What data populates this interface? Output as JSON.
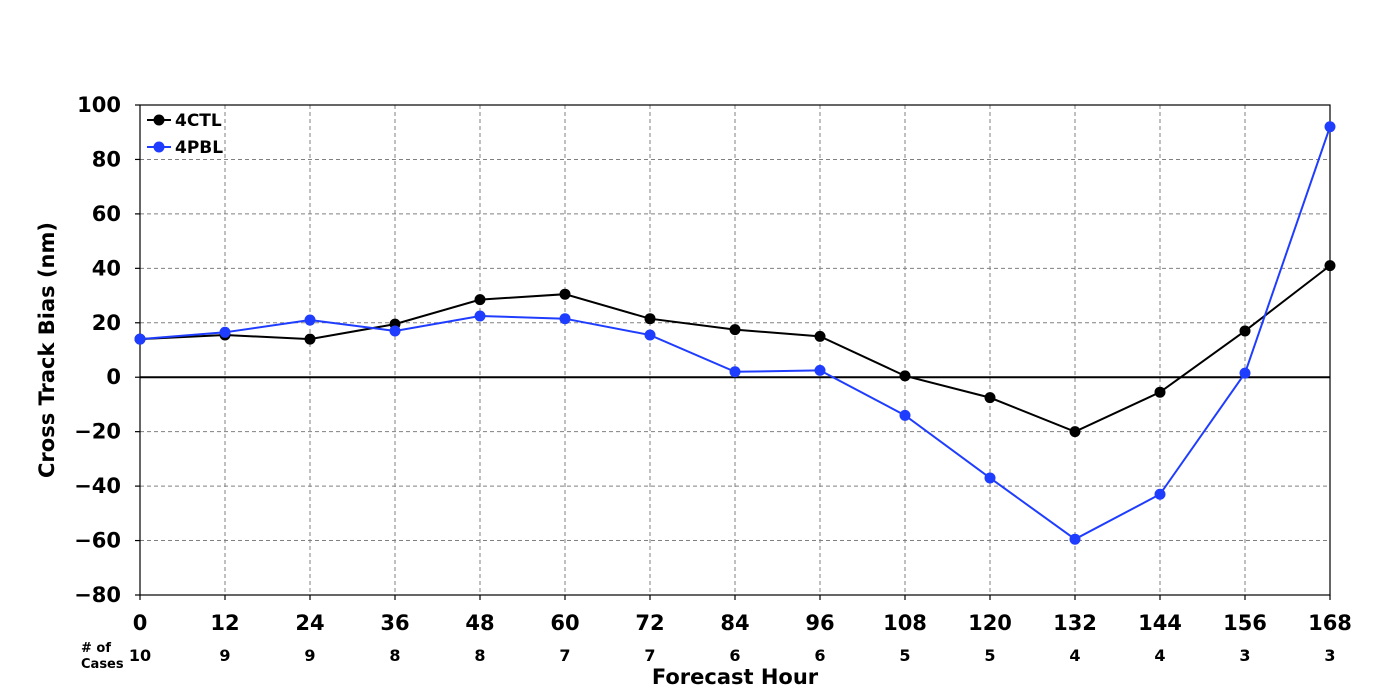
{
  "chart_data": {
    "type": "line",
    "xlabel": "Forecast Hour",
    "ylabel": "Cross Track Bias (nm)",
    "x": [
      0,
      12,
      24,
      36,
      48,
      60,
      72,
      84,
      96,
      108,
      120,
      132,
      144,
      156,
      168
    ],
    "xlim": [
      0,
      168
    ],
    "ylim": [
      -80,
      100
    ],
    "y_ticks": [
      100,
      80,
      60,
      40,
      20,
      0,
      -20,
      -40,
      -60,
      -80
    ],
    "y_tick_labels": [
      "100",
      "80",
      "60",
      "40",
      "20",
      "0",
      "−20",
      "−40",
      "−60",
      "−80"
    ],
    "x_tick_labels": [
      "0",
      "12",
      "24",
      "36",
      "48",
      "60",
      "72",
      "84",
      "96",
      "108",
      "120",
      "132",
      "144",
      "156",
      "168"
    ],
    "grid": true,
    "legend_position": "top-left",
    "series": [
      {
        "name": "4CTL",
        "color": "#000000",
        "values": [
          14,
          15.5,
          14,
          19.5,
          28.5,
          30.5,
          21.5,
          17.5,
          15,
          0.5,
          -7.5,
          -20,
          -5.5,
          17,
          41
        ]
      },
      {
        "name": "4PBL",
        "color": "#1f3dff",
        "values": [
          14,
          16.5,
          21,
          17,
          22.5,
          21.5,
          15.5,
          2,
          2.5,
          -14,
          -37,
          -59.5,
          -43,
          1.5,
          92
        ]
      }
    ],
    "cases": {
      "label_line1": "# of",
      "label_line2": "Cases",
      "values": [
        "10",
        "9",
        "9",
        "8",
        "8",
        "7",
        "7",
        "6",
        "6",
        "5",
        "5",
        "4",
        "4",
        "3",
        "3"
      ]
    }
  }
}
